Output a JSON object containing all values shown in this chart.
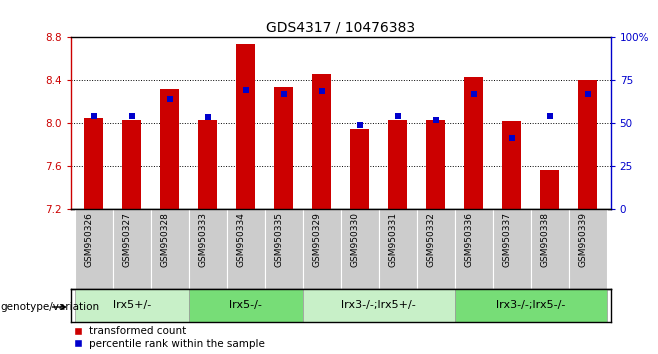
{
  "title": "GDS4317 / 10476383",
  "samples": [
    "GSM950326",
    "GSM950327",
    "GSM950328",
    "GSM950333",
    "GSM950334",
    "GSM950335",
    "GSM950329",
    "GSM950330",
    "GSM950331",
    "GSM950332",
    "GSM950336",
    "GSM950337",
    "GSM950338",
    "GSM950339"
  ],
  "red_values": [
    8.05,
    8.03,
    8.32,
    8.03,
    8.74,
    8.34,
    8.46,
    7.94,
    8.03,
    8.03,
    8.43,
    8.02,
    7.56,
    8.4
  ],
  "blue_values": [
    8.07,
    8.07,
    8.22,
    8.06,
    8.31,
    8.27,
    8.3,
    7.98,
    8.07,
    8.03,
    8.27,
    7.86,
    8.07,
    8.27
  ],
  "ymin": 7.2,
  "ymax": 8.8,
  "yticks_left": [
    7.2,
    7.6,
    8.0,
    8.4,
    8.8
  ],
  "yticks_right": [
    0,
    25,
    50,
    75,
    100
  ],
  "bar_color": "#cc0000",
  "blue_color": "#0000cc",
  "groups": [
    {
      "label": "lrx5+/-",
      "start": 0,
      "end": 2,
      "color": "#c8f0c8"
    },
    {
      "label": "lrx5-/-",
      "start": 3,
      "end": 5,
      "color": "#77dd77"
    },
    {
      "label": "lrx3-/-;lrx5+/-",
      "start": 6,
      "end": 9,
      "color": "#c8f0c8"
    },
    {
      "label": "lrx3-/-;lrx5-/-",
      "start": 10,
      "end": 13,
      "color": "#77dd77"
    }
  ],
  "bar_width": 0.5,
  "legend_red": "transformed count",
  "legend_blue": "percentile rank within the sample",
  "tick_bg_color": "#cccccc",
  "group_label": "genotype/variation",
  "grid_lines": [
    7.6,
    8.0,
    8.4
  ],
  "plot_bg": "#ffffff",
  "box_color": "#000000"
}
